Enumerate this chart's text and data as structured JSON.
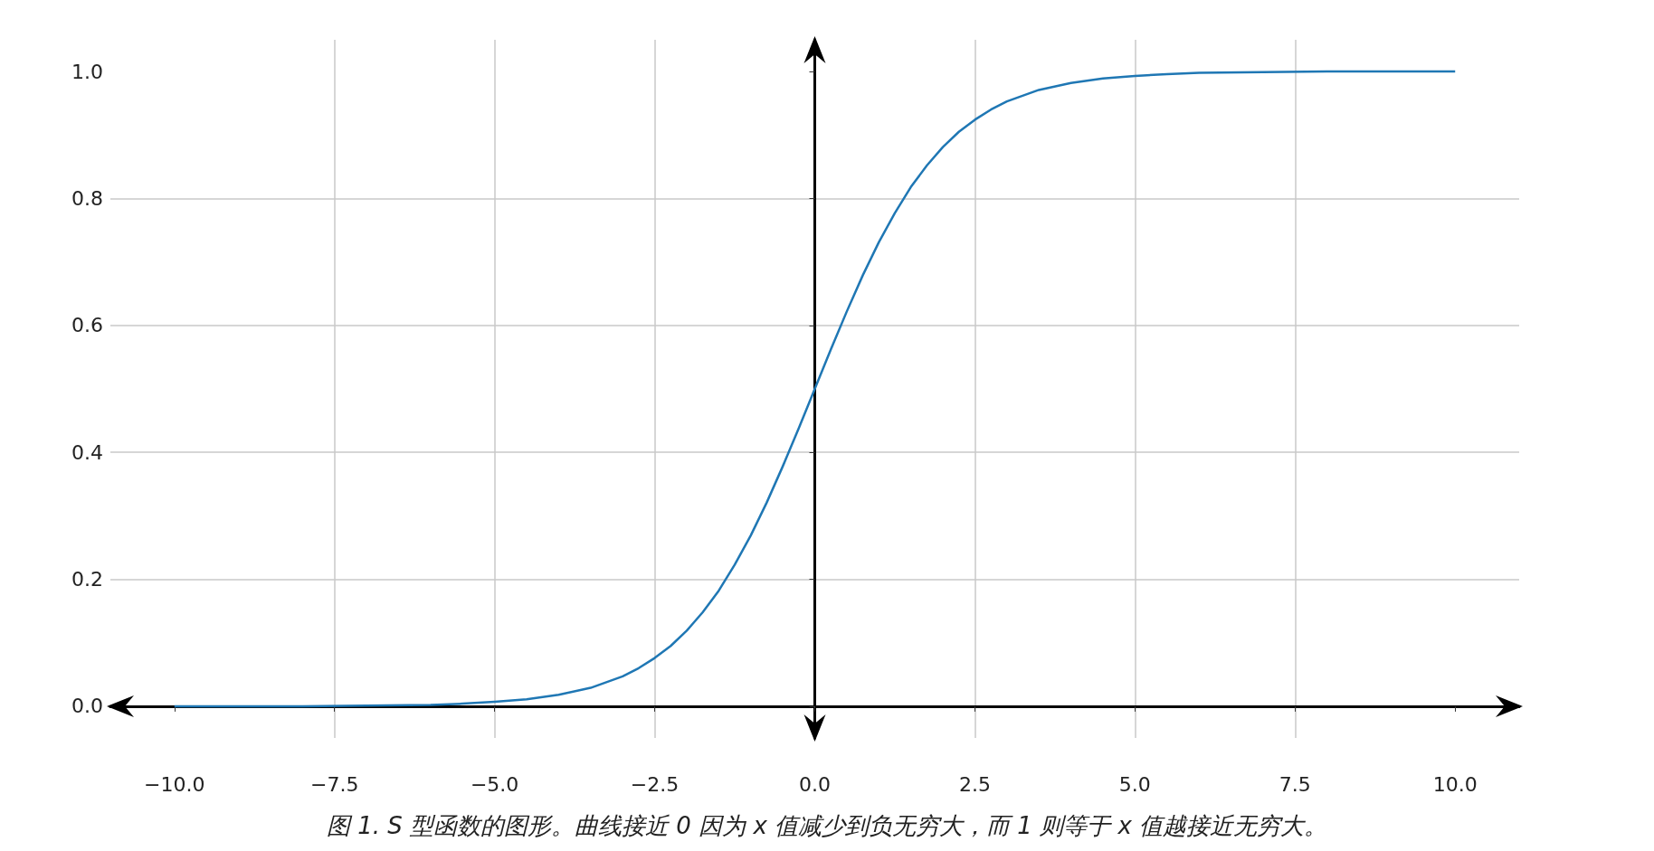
{
  "chart_data": {
    "type": "line",
    "x": [
      -10,
      -9,
      -8,
      -7,
      -6,
      -5.5,
      -5,
      -4.5,
      -4,
      -3.5,
      -3,
      -2.75,
      -2.5,
      -2.25,
      -2,
      -1.75,
      -1.5,
      -1.25,
      -1,
      -0.75,
      -0.5,
      -0.25,
      0,
      0.25,
      0.5,
      0.75,
      1,
      1.25,
      1.5,
      1.75,
      2,
      2.25,
      2.5,
      2.75,
      3,
      3.5,
      4,
      4.5,
      5,
      5.5,
      6,
      7,
      8,
      9,
      10
    ],
    "series": [
      {
        "color": "#1f77b4",
        "values": [
          0.0,
          0.0,
          0.0,
          0.001,
          0.002,
          0.004,
          0.007,
          0.011,
          0.018,
          0.029,
          0.047,
          0.06,
          0.076,
          0.095,
          0.119,
          0.148,
          0.182,
          0.223,
          0.269,
          0.321,
          0.378,
          0.438,
          0.5,
          0.562,
          0.622,
          0.679,
          0.731,
          0.777,
          0.818,
          0.852,
          0.881,
          0.905,
          0.924,
          0.94,
          0.953,
          0.971,
          0.982,
          0.989,
          0.993,
          0.996,
          0.998,
          0.999,
          1.0,
          1.0,
          1.0
        ]
      }
    ],
    "xlim": [
      -11,
      11
    ],
    "xticks": [
      {
        "value": -10,
        "label": "−10.0"
      },
      -7.5,
      {
        "value": -5,
        "label": "−5.0"
      },
      -2.5,
      {
        "value": 0,
        "label": "0.0"
      },
      2.5,
      {
        "value": 5,
        "label": "5.0"
      },
      7.5,
      {
        "value": 10,
        "label": "10.0"
      }
    ],
    "ylim": [
      -0.05,
      1.05
    ],
    "yticks": [
      {
        "value": 0,
        "label": "0.0"
      },
      0.2,
      0.4,
      0.6,
      0.8,
      {
        "value": 1,
        "label": "1.0"
      }
    ],
    "grid": true,
    "marker": "none",
    "annotations": [
      "图 1. S 型函数的图形。曲线接近 0 因为 x 值减少到负无穷大，而 1 则等于 x 值越接近无穷大。"
    ]
  }
}
